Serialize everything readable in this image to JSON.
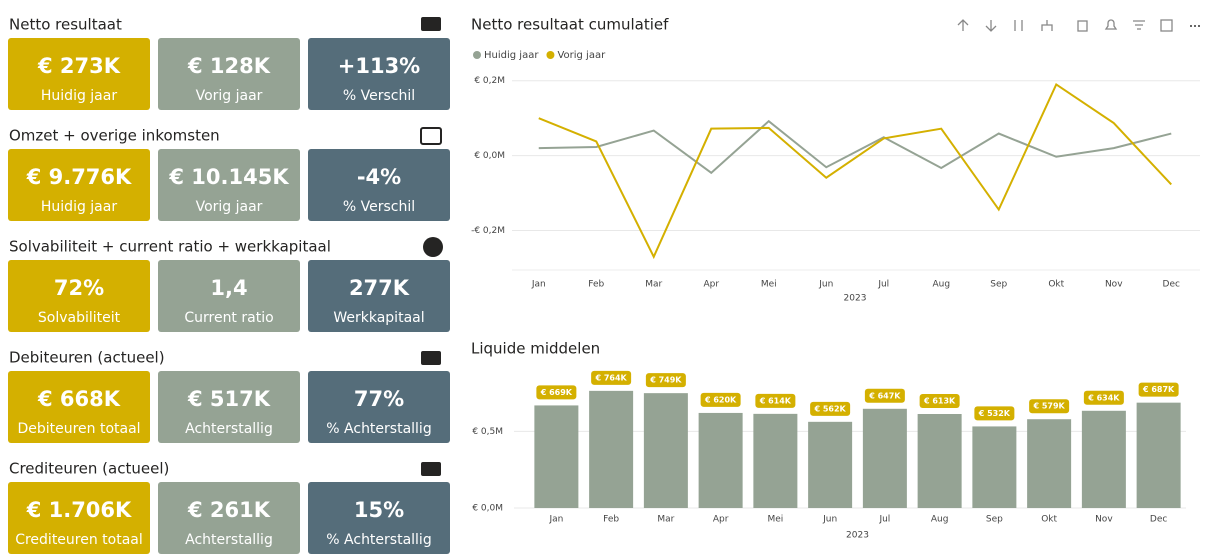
{
  "sections": [
    {
      "title": "Netto resultaat",
      "cards": [
        {
          "value": "€ 273K",
          "label": "Huidig jaar"
        },
        {
          "value": "€ 128K",
          "label": "Vorig jaar"
        },
        {
          "value": "+113%",
          "label": "% Verschil"
        }
      ]
    },
    {
      "title": "Omzet + overige inkomsten",
      "cards": [
        {
          "value": "€ 9.776K",
          "label": "Huidig jaar"
        },
        {
          "value": "€ 10.145K",
          "label": "Vorig jaar"
        },
        {
          "value": "-4%",
          "label": "% Verschil"
        }
      ]
    },
    {
      "title": "Solvabiliteit + current ratio + werkkapitaal",
      "cards": [
        {
          "value": "72%",
          "label": "Solvabiliteit"
        },
        {
          "value": "1,4",
          "label": "Current ratio"
        },
        {
          "value": "277K",
          "label": "Werkkapitaal"
        }
      ]
    },
    {
      "title": "Debiteuren (actueel)",
      "cards": [
        {
          "value": "€ 668K",
          "label": "Debiteuren totaal"
        },
        {
          "value": "€ 517K",
          "label": "Achterstallig"
        },
        {
          "value": "77%",
          "label": "% Achterstallig"
        }
      ]
    },
    {
      "title": "Crediteuren (actueel)",
      "cards": [
        {
          "value": "€ 1.706K",
          "label": "Crediteuren totaal"
        },
        {
          "value": "€ 261K",
          "label": "Achterstallig"
        },
        {
          "value": "15%",
          "label": "% Achterstallig"
        }
      ]
    }
  ],
  "card_colors": [
    "#d4b000",
    "#95a394",
    "#556d7a"
  ],
  "chart_data": [
    {
      "type": "line",
      "title": "Netto resultaat cumulatief",
      "xlabel": "2023",
      "categories": [
        "Jan",
        "Feb",
        "Mar",
        "Apr",
        "Mei",
        "Jun",
        "Jul",
        "Aug",
        "Sep",
        "Okt",
        "Nov",
        "Dec"
      ],
      "series": [
        {
          "name": "Huidig jaar",
          "color": "#95a394",
          "values": [
            0.02,
            0.023,
            0.067,
            -0.046,
            0.092,
            -0.031,
            0.049,
            -0.033,
            0.059,
            -0.003,
            0.02,
            0.059
          ]
        },
        {
          "name": "Vorig jaar",
          "color": "#d4b000",
          "values": [
            0.1,
            0.038,
            -0.27,
            0.072,
            0.074,
            -0.059,
            0.046,
            0.072,
            -0.144,
            0.19,
            0.087,
            -0.077
          ]
        }
      ],
      "ylim": [
        -0.3,
        0.25
      ],
      "yticks": [
        {
          "value": -0.2,
          "label": "-€ 0,2M"
        },
        {
          "value": 0,
          "label": "€ 0,0M"
        },
        {
          "value": 0.2,
          "label": "€ 0,2M"
        }
      ],
      "grid": true,
      "legend": "top-left"
    },
    {
      "type": "bar",
      "title": "Liquide middelen",
      "xlabel": "2023",
      "categories": [
        "Jan",
        "Feb",
        "Mar",
        "Apr",
        "Mei",
        "Jun",
        "Jul",
        "Aug",
        "Sep",
        "Okt",
        "Nov",
        "Dec"
      ],
      "values": [
        0.669,
        0.764,
        0.749,
        0.62,
        0.614,
        0.562,
        0.647,
        0.613,
        0.532,
        0.579,
        0.634,
        0.687
      ],
      "value_labels": [
        "€ 669K",
        "€ 764K",
        "€ 749K",
        "€ 620K",
        "€ 614K",
        "€ 562K",
        "€ 647K",
        "€ 613K",
        "€ 532K",
        "€ 579K",
        "€ 634K",
        "€ 687K"
      ],
      "color": "#95a394",
      "label_color": "#d4b000",
      "ylim": [
        0,
        0.9
      ],
      "yticks": [
        {
          "value": 0,
          "label": "€ 0,0M"
        },
        {
          "value": 0.5,
          "label": "€ 0,5M"
        }
      ],
      "grid": true
    }
  ]
}
